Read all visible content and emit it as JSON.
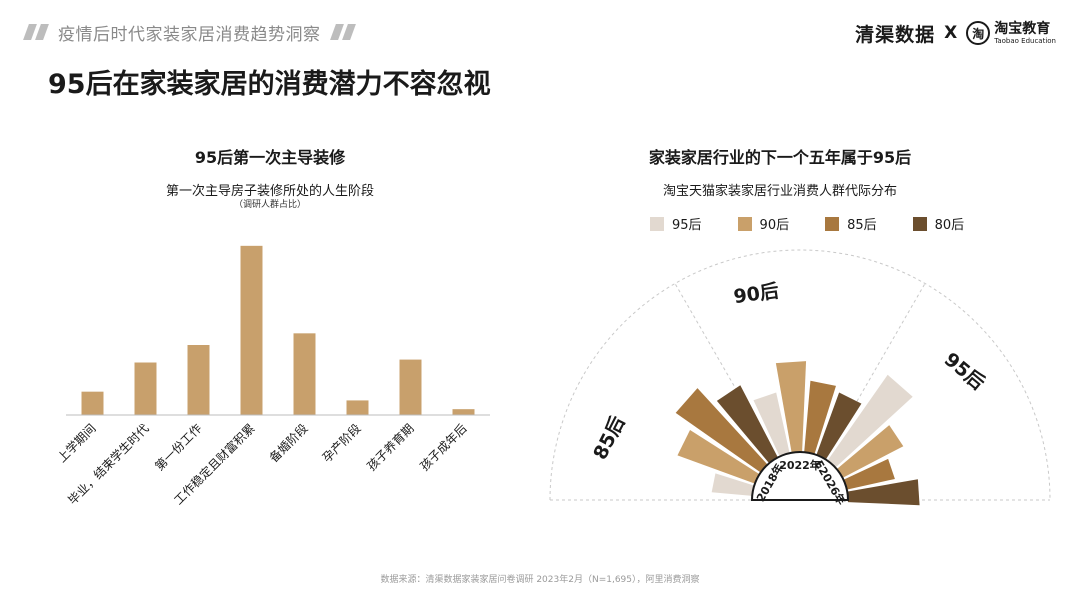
{
  "header": {
    "section_title": "疫情后时代家装家居消费趋势洞察"
  },
  "brand": {
    "partner_name": "清渠数据",
    "times": "X",
    "logo_char": "淘",
    "edu_name": "淘宝教育",
    "edu_en": "Taobao Education"
  },
  "page": {
    "title": "95后在家装家居的消费潜力不容忽视"
  },
  "left_chart": {
    "title": "95后第一次主导装修",
    "subtitle": "第一次主导房子装修所处的人生阶段",
    "note": "（调研人群占比）"
  },
  "right_chart": {
    "title": "家装家居行业的下一个五年属于95后",
    "subtitle": "淘宝天猫家装家居行业消费人群代际分布"
  },
  "footer": {
    "source": "数据来源：清渠数据家装家居问卷调研 2023年2月（N=1,695），阿里消费洞察"
  },
  "colors": {
    "bar": "#c8a06c",
    "c95": "#e2d9d0",
    "c90": "#c9a06a",
    "c85": "#a8783f",
    "c80": "#6b4e2e"
  },
  "chart_data": [
    {
      "type": "bar",
      "title": "第一次主导房子装修所处的人生阶段",
      "categories": [
        "上学期间",
        "毕业，结束学生时代",
        "第一份工作",
        "工作稳定且财富积累",
        "备婚阶段",
        "孕产阶段",
        "孩子养育期",
        "孩子成年后"
      ],
      "values": [
        4,
        9,
        12,
        29,
        14,
        2.5,
        9.5,
        1
      ],
      "ylim": [
        0,
        30
      ],
      "grid": false,
      "xlabel": "",
      "ylabel": ""
    },
    {
      "type": "bar",
      "subtype": "radial-stacked-bar",
      "title": "淘宝天猫家装家居行业消费人群代际分布",
      "categories": [
        "2018年",
        "2022年",
        "E2026年"
      ],
      "series": [
        {
          "name": "95后",
          "values": [
            38,
            58,
            98
          ]
        },
        {
          "name": "90后",
          "values": [
            77,
            85,
            64
          ]
        },
        {
          "name": "85后",
          "values": [
            97,
            67,
            46
          ]
        },
        {
          "name": "80后",
          "values": [
            76,
            62,
            67
          ]
        }
      ],
      "annotations": [
        {
          "text": "85后",
          "group": "2018年"
        },
        {
          "text": "90后",
          "group": "2022年"
        },
        {
          "text": "95后",
          "group": "E2026年"
        }
      ],
      "legend": "top"
    }
  ]
}
